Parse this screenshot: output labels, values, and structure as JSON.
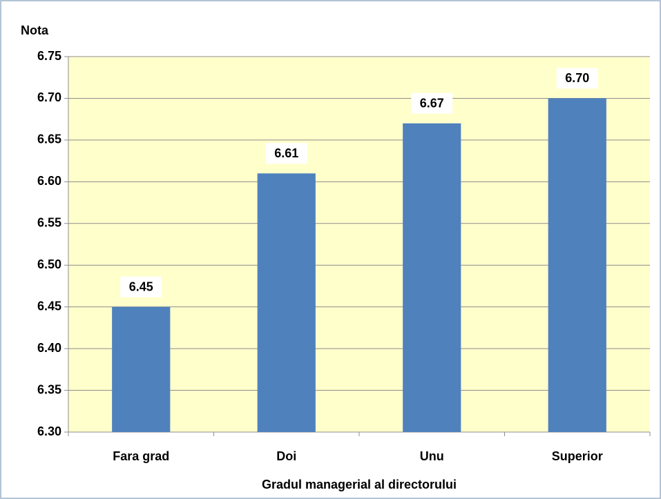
{
  "chart_data": {
    "type": "bar",
    "y_label": "Nota",
    "x_label": "Gradul managerial al directorului",
    "categories": [
      "Fara grad",
      "Doi",
      "Unu",
      "Superior"
    ],
    "values": [
      6.45,
      6.61,
      6.67,
      6.7
    ],
    "value_labels": [
      "6.45",
      "6.61",
      "6.67",
      "6.70"
    ],
    "color": "#4f81bd",
    "background": "#ffffcc",
    "ylim": [
      6.3,
      6.75
    ],
    "yticks": [
      {
        "value": 6.3,
        "label": "6.30"
      },
      6.35,
      {
        "value": 6.4,
        "label": "6.40"
      },
      6.45,
      {
        "value": 6.5,
        "label": "6.50"
      },
      6.55,
      {
        "value": 6.6,
        "label": "6.60"
      },
      6.65,
      {
        "value": 6.7,
        "label": "6.70"
      },
      6.75
    ],
    "grid": true
  }
}
